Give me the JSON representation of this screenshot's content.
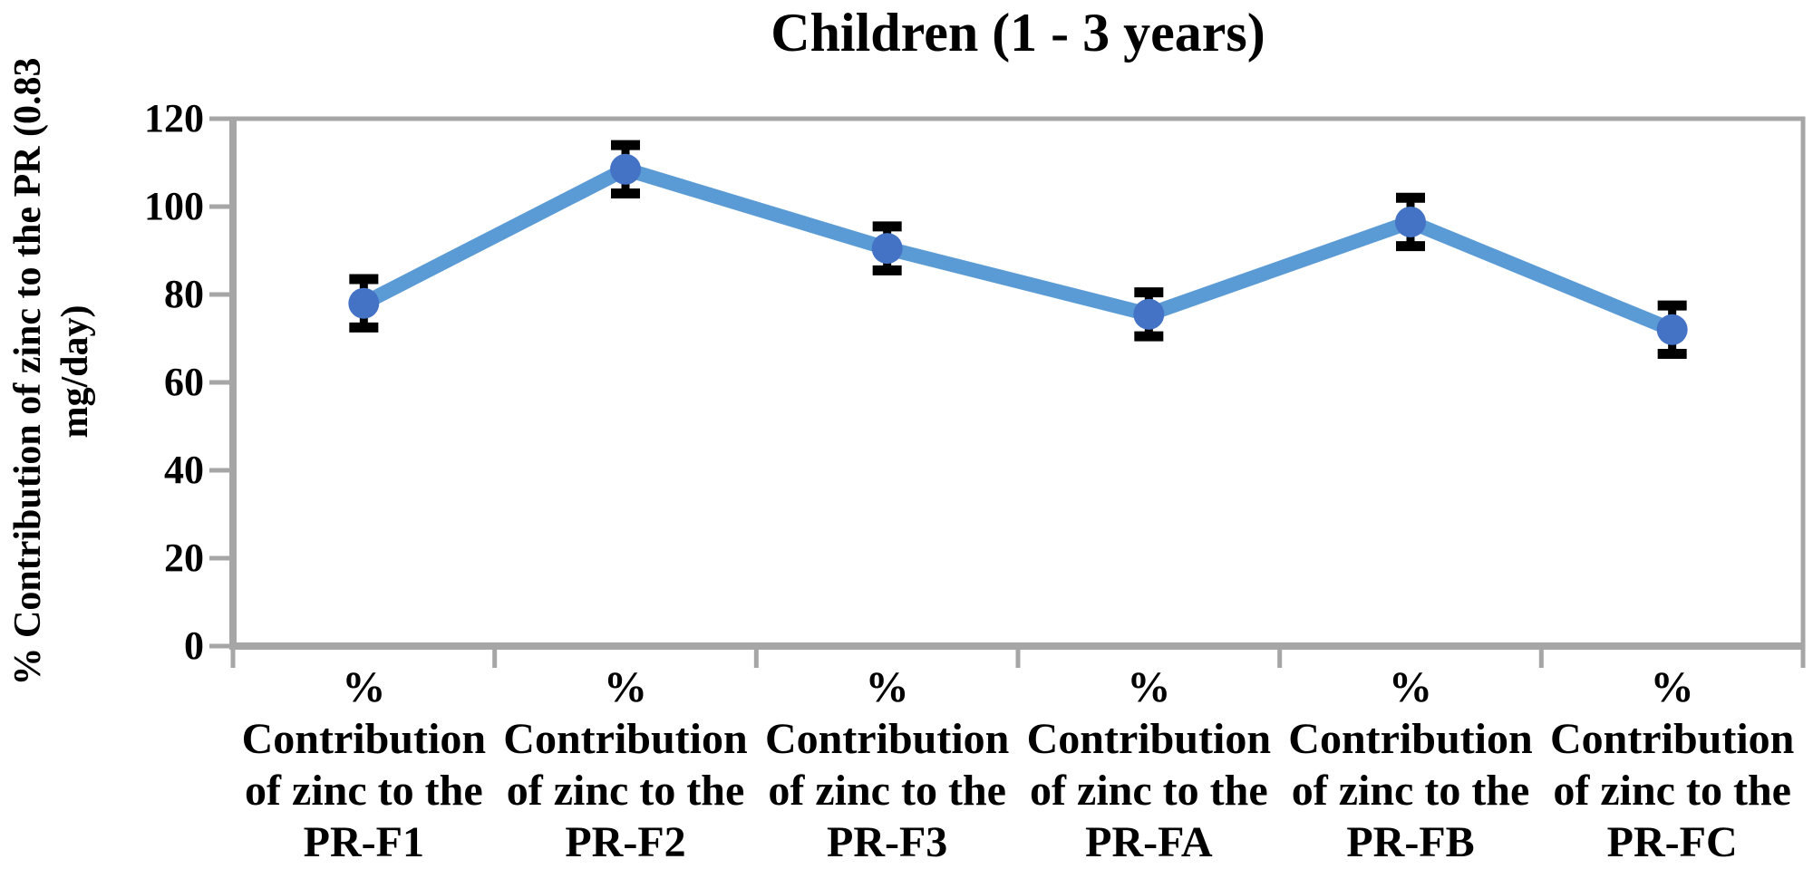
{
  "chart_data": {
    "type": "line",
    "title": "Children (1 - 3 years)",
    "ylabel": "% Contribution of zinc to the PR (0.83 mg/day)",
    "ylabel_lines": [
      "% Contribution of zinc to the PR (0.83",
      "mg/day)"
    ],
    "categories": [
      "% Contribution of zinc to the PR-F1",
      "% Contribution of zinc to the PR-F2",
      "% Contribution of zinc to the PR-F3",
      "% Contribution of zinc to the PR-FA",
      "% Contribution of zinc to the PR-FB",
      "% Contribution of zinc to the PR-FC"
    ],
    "category_lines": [
      [
        "%",
        "Contribution",
        "of zinc to the",
        "PR-F1"
      ],
      [
        "%",
        "Contribution",
        "of zinc to the",
        "PR-F2"
      ],
      [
        "%",
        "Contribution",
        "of zinc to the",
        "PR-F3"
      ],
      [
        "%",
        "Contribution",
        "of zinc to the",
        "PR-FA"
      ],
      [
        "%",
        "Contribution",
        "of zinc to the",
        "PR-FB"
      ],
      [
        "%",
        "Contribution",
        "of zinc to the",
        "PR-FC"
      ]
    ],
    "values": [
      78,
      108.5,
      90.5,
      75.5,
      96.5,
      72
    ],
    "errors": [
      5.5,
      5.5,
      5,
      5,
      5.5,
      5.5
    ],
    "ylim": [
      0,
      120
    ],
    "yticks": [
      0,
      20,
      40,
      60,
      80,
      100,
      120
    ],
    "grid": false,
    "legend": "none",
    "marker": "circle",
    "error_bars": true,
    "colors": {
      "line": "#5B9BD5",
      "marker": "#4472C4",
      "error_bar": "#000000",
      "axis": "#A6A6A6",
      "text": "#000000",
      "background": "#FFFFFF"
    }
  }
}
